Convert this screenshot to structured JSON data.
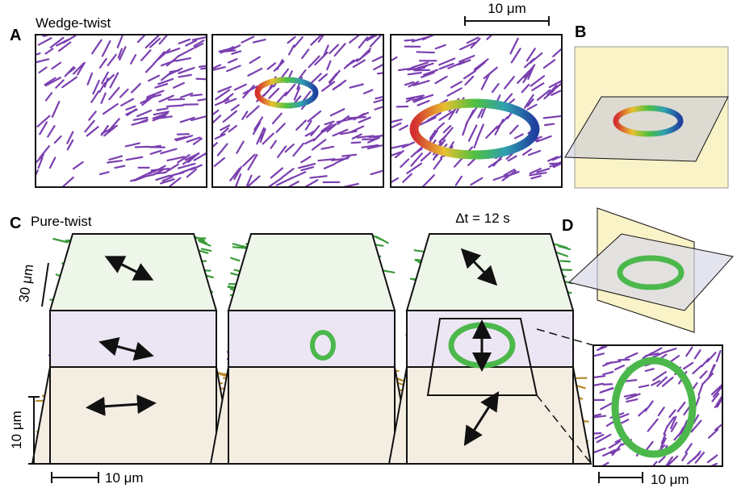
{
  "panels": {
    "A": {
      "label": "A",
      "title": "Wedge-twist",
      "scale_bar": "10 μm"
    },
    "B": {
      "label": "B"
    },
    "C": {
      "label": "C",
      "title": "Pure-twist",
      "time": "Δt = 12 s",
      "depth_scale": "30 μm",
      "height_scale": "10 μm",
      "width_scale": "10 μm"
    },
    "D": {
      "label": "D",
      "scale_bar": "10 μm"
    }
  }
}
